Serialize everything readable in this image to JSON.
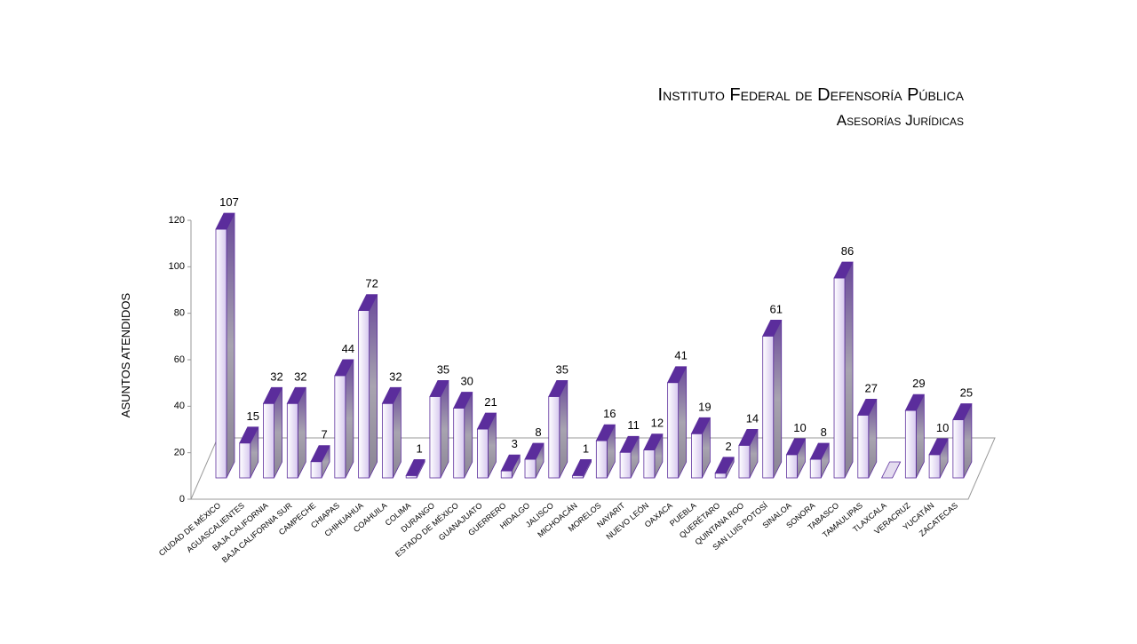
{
  "chart_data": {
    "type": "bar3d",
    "title": "Instituto Federal de Defensoría Pública",
    "subtitle": "Asesorías Jurídicas",
    "y_label": "ASUNTOS ATENDIDOS",
    "categories": [
      "CIUDAD DE MÉXICO",
      "AGUASCALIENTES",
      "BAJA CALIFORNIA",
      "BAJA CALIFORNIA SUR",
      "CAMPECHE",
      "CHIAPAS",
      "CHIHUAHUA",
      "COAHUILA",
      "COLIMA",
      "DURANGO",
      "ESTADO DE MÉXICO",
      "GUANAJUATO",
      "GUERRERO",
      "HIDALGO",
      "JALISCO",
      "MICHOACÁN",
      "MORELOS",
      "NAYARIT",
      "NUEVO LEÓN",
      "OAXACA",
      "PUEBLA",
      "QUERÉTARO",
      "QUINTANA ROO",
      "SAN LUIS POTOSÍ",
      "SINALOA",
      "SONORA",
      "TABASCO",
      "TAMAULIPAS",
      "TLAXCALA",
      "VERACRUZ",
      "YUCATÁN",
      "ZACATECAS"
    ],
    "values": [
      107,
      15,
      32,
      32,
      7,
      44,
      72,
      32,
      1,
      35,
      30,
      21,
      3,
      8,
      35,
      1,
      16,
      11,
      12,
      41,
      19,
      2,
      14,
      61,
      10,
      8,
      86,
      27,
      0,
      29,
      10,
      25
    ],
    "color": "#5b2d9c",
    "ylim": [
      0,
      120
    ],
    "yticks": [
      0,
      20,
      40,
      60,
      80,
      100,
      120
    ]
  }
}
